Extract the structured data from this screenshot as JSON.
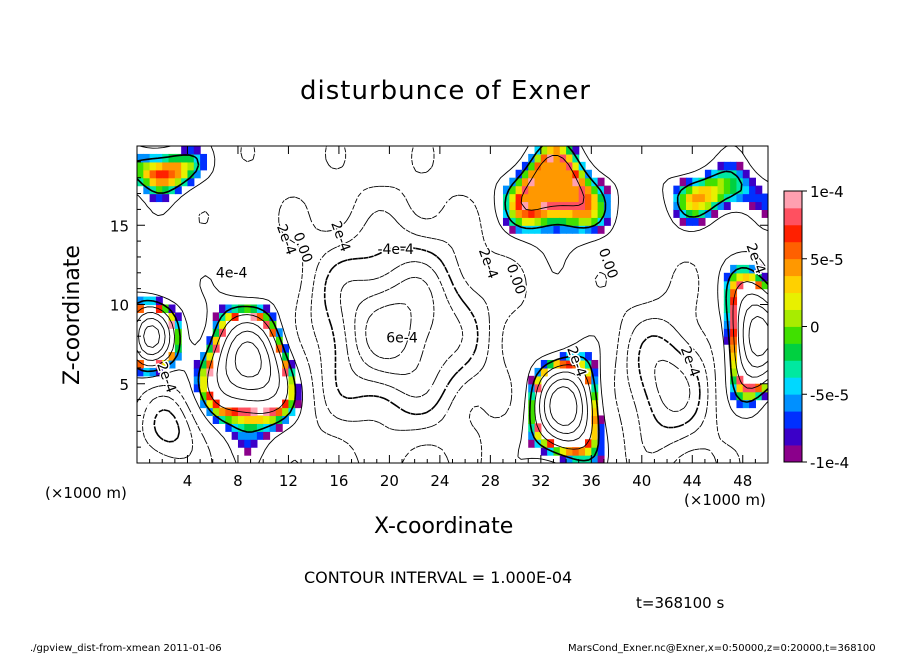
{
  "title": "disturbunce of Exner",
  "xlabel": "X-coordinate",
  "ylabel": "Z-coordinate",
  "x_unit_label_left": "(×1000 m)",
  "x_unit_label_right": "(×1000 m)",
  "contour_interval": "CONTOUR INTERVAL = 1.000E-04",
  "time_label": "t=368100 s",
  "footer_left": "./gpview_dist-from-xmean   2011-01-06",
  "footer_right": "MarsCond_Exner.nc@Exner,x=0:50000,z=0:20000,t=368100",
  "chart_data": {
    "type": "heatmap",
    "title": "disturbunce of Exner",
    "xlabel": "X-coordinate",
    "ylabel": "Z-coordinate",
    "xlim": [
      0,
      50
    ],
    "ylim": [
      0,
      20
    ],
    "x_ticks": [
      4,
      8,
      12,
      16,
      20,
      24,
      28,
      32,
      36,
      40,
      44,
      48
    ],
    "y_ticks": [
      5,
      10,
      15
    ],
    "colorbar": {
      "range": [
        -0.0001,
        0.0001
      ],
      "tick_values": [
        0.0001,
        5e-05,
        0,
        -5e-05,
        -0.0001
      ],
      "tick_labels": [
        "1e-4",
        "5e-5",
        "0",
        "-5e-5",
        "-1e-4"
      ],
      "colors": [
        "#8b008b",
        "#3b00c8",
        "#0030ff",
        "#0090ff",
        "#00d8ff",
        "#00e8a0",
        "#00d040",
        "#40e000",
        "#a8ec00",
        "#e8f000",
        "#ffd000",
        "#ff9800",
        "#ff6000",
        "#ff2000",
        "#ff5060",
        "#ffa0b0"
      ]
    },
    "contour_labels": [
      {
        "text": "0.00",
        "x": 12.8,
        "z": 13.5
      },
      {
        "text": "0.00",
        "x": 29.7,
        "z": 11.5
      },
      {
        "text": "0.00",
        "x": 37.0,
        "z": 12.5
      },
      {
        "text": "2e-4",
        "x": 11.5,
        "z": 14.0
      },
      {
        "text": "2e-4",
        "x": 15.8,
        "z": 14.2
      },
      {
        "text": "-4e-4",
        "x": 20.5,
        "z": 13.2
      },
      {
        "text": "2e-4",
        "x": 27.5,
        "z": 12.5
      },
      {
        "text": "4e-4",
        "x": 7.5,
        "z": 11.7
      },
      {
        "text": "2e-4",
        "x": 2.0,
        "z": 5.3
      },
      {
        "text": "6e-4",
        "x": 21.0,
        "z": 7.6
      },
      {
        "text": "2e-4",
        "x": 34.5,
        "z": 6.3
      },
      {
        "text": "2e-4",
        "x": 43.5,
        "z": 6.3
      },
      {
        "text": "2e-4",
        "x": 48.7,
        "z": 12.8
      }
    ]
  }
}
